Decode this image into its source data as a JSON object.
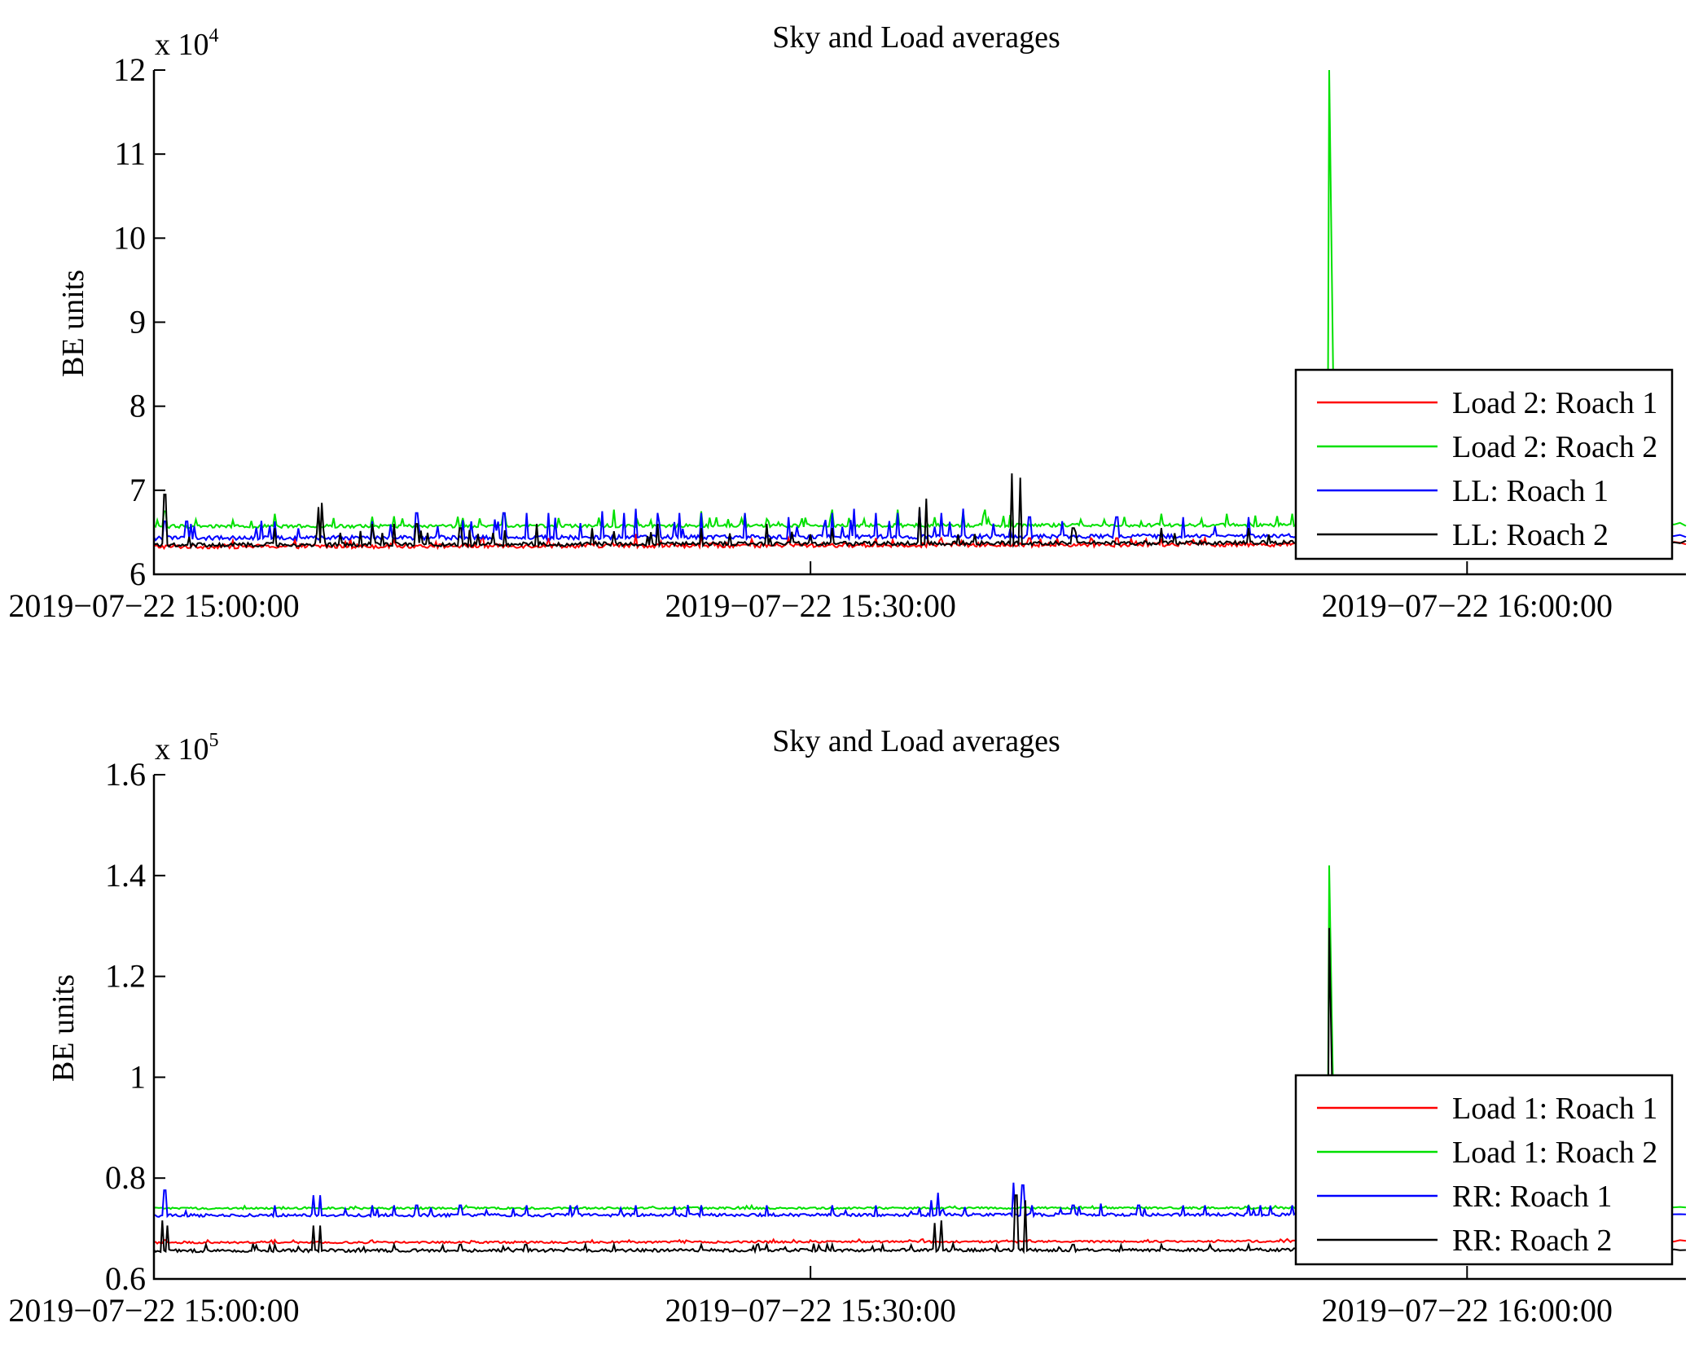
{
  "colors": {
    "red": "#ff0000",
    "green": "#00e000",
    "blue": "#0000ff",
    "black": "#000000"
  },
  "chart_data": [
    {
      "type": "line",
      "title": "Sky and Load averages",
      "ylabel": "BE units",
      "y_exponent_prefix": "x 10",
      "y_exponent_power": "4",
      "ylim": [
        6,
        12
      ],
      "yticks": [
        "6",
        "7",
        "8",
        "9",
        "10",
        "11",
        "12"
      ],
      "xlim_minutes": [
        0,
        70
      ],
      "xticks": [
        {
          "minute": 0,
          "label": "2019−07−22 15:00:00"
        },
        {
          "minute": 30,
          "label": "2019−07−22 15:30:00"
        },
        {
          "minute": 60,
          "label": "2019−07−22 16:00:00"
        }
      ],
      "series": [
        {
          "name": "Load 2: Roach 1",
          "color": "red",
          "baseline": 6.33,
          "noise": 0.025,
          "trend": 0.03,
          "spike_height": 0.08,
          "spikes": [
            [
              9,
              0.1
            ],
            [
              15,
              0.1
            ],
            [
              18,
              0.1
            ],
            [
              22,
              0.15
            ],
            [
              25,
              0.12
            ],
            [
              29,
              0.1
            ],
            [
              33,
              0.1
            ],
            [
              36,
              0.1
            ],
            [
              40,
              0.1
            ],
            [
              44,
              0.1
            ],
            [
              48,
              0.1
            ]
          ]
        },
        {
          "name": "Load 2: Roach 2",
          "color": "green",
          "baseline": 6.57,
          "noise": 0.02,
          "trend": 0.02,
          "spike_height": 0.12,
          "spikes": [
            [
              0.5,
              0.18
            ],
            [
              5.5,
              0.15
            ],
            [
              11,
              0.12
            ],
            [
              16,
              0.15
            ],
            [
              21,
              0.2
            ],
            [
              25,
              0.18
            ],
            [
              27,
              0.15
            ],
            [
              31,
              0.2
            ],
            [
              34,
              0.2
            ],
            [
              37,
              0.18
            ],
            [
              38,
              0.2
            ],
            [
              46,
              0.15
            ],
            [
              49,
              0.15
            ],
            [
              52,
              0.15
            ],
            [
              53.7,
              5.62
            ]
          ]
        },
        {
          "name": "LL: Roach 1",
          "color": "blue",
          "baseline": 6.43,
          "noise": 0.025,
          "trend": 0.03,
          "spike_height": 0.22,
          "spikes": [
            [
              0.5,
              0.2
            ],
            [
              1.5,
              0.2
            ],
            [
              5.5,
              0.2
            ],
            [
              10,
              0.2
            ],
            [
              12,
              0.3
            ],
            [
              14.5,
              0.2
            ],
            [
              16,
              0.3
            ],
            [
              17,
              0.3
            ],
            [
              18,
              0.3
            ],
            [
              20.5,
              0.32
            ],
            [
              21.5,
              0.3
            ],
            [
              22,
              0.35
            ],
            [
              23,
              0.3
            ],
            [
              24,
              0.3
            ],
            [
              25,
              0.3
            ],
            [
              27,
              0.3
            ],
            [
              29,
              0.25
            ],
            [
              31,
              0.3
            ],
            [
              32,
              0.35
            ],
            [
              33,
              0.3
            ],
            [
              34,
              0.3
            ],
            [
              35,
              0.35
            ],
            [
              36,
              0.3
            ],
            [
              37,
              0.35
            ],
            [
              40,
              0.25
            ],
            [
              44,
              0.25
            ],
            [
              47,
              0.25
            ],
            [
              50,
              0.25
            ],
            [
              54,
              0.25
            ],
            [
              59,
              0.25
            ]
          ]
        },
        {
          "name": "LL: Roach 2",
          "color": "black",
          "baseline": 6.35,
          "noise": 0.025,
          "trend": 0.03,
          "spike_height": 0.18,
          "spikes": [
            [
              0.5,
              0.6
            ],
            [
              5.5,
              0.2
            ],
            [
              7.5,
              0.45
            ],
            [
              7.7,
              0.5
            ],
            [
              10,
              0.25
            ],
            [
              11,
              0.25
            ],
            [
              12,
              0.25
            ],
            [
              14,
              0.2
            ],
            [
              17.5,
              0.25
            ],
            [
              20,
              0.2
            ],
            [
              23,
              0.25
            ],
            [
              25,
              0.2
            ],
            [
              28,
              0.25
            ],
            [
              31,
              0.2
            ],
            [
              35,
              0.45
            ],
            [
              35.3,
              0.55
            ],
            [
              39.2,
              0.85
            ],
            [
              39.6,
              0.8
            ],
            [
              42,
              0.2
            ],
            [
              46,
              0.2
            ],
            [
              50,
              0.2
            ],
            [
              53,
              0.2
            ]
          ]
        }
      ]
    },
    {
      "type": "line",
      "title": "Sky and Load averages",
      "ylabel": "BE units",
      "y_exponent_prefix": "x 10",
      "y_exponent_power": "5",
      "ylim": [
        0.6,
        1.6
      ],
      "yticks": [
        "0.6",
        "0.8",
        "1",
        "1.2",
        "1.4",
        "1.6"
      ],
      "xlim_minutes": [
        0,
        70
      ],
      "xticks": [
        {
          "minute": 0,
          "label": "2019−07−22 15:00:00"
        },
        {
          "minute": 30,
          "label": "2019−07−22 15:30:00"
        },
        {
          "minute": 60,
          "label": "2019−07−22 16:00:00"
        }
      ],
      "series": [
        {
          "name": "Load 1: Roach 1",
          "color": "red",
          "baseline": 0.672,
          "noise": 0.002,
          "trend": 0.003,
          "spike_height": 0.004,
          "spikes": [
            [
              0.5,
              0.005
            ],
            [
              10,
              0.005
            ],
            [
              20,
              0.005
            ],
            [
              30,
              0.005
            ],
            [
              40,
              0.005
            ],
            [
              50,
              0.005
            ]
          ]
        },
        {
          "name": "Load 1: Roach 2",
          "color": "green",
          "baseline": 0.74,
          "noise": 0.002,
          "trend": 0.001,
          "spike_height": 0.004,
          "spikes": [
            [
              53.7,
              0.68
            ]
          ]
        },
        {
          "name": "RR: Roach 1",
          "color": "blue",
          "baseline": 0.726,
          "noise": 0.003,
          "trend": 0.002,
          "spike_height": 0.02,
          "spikes": [
            [
              0.5,
              0.05
            ],
            [
              5.5,
              0.02
            ],
            [
              7.3,
              0.04
            ],
            [
              7.6,
              0.04
            ],
            [
              10,
              0.02
            ],
            [
              11,
              0.02
            ],
            [
              12,
              0.02
            ],
            [
              14,
              0.02
            ],
            [
              17,
              0.02
            ],
            [
              19,
              0.02
            ],
            [
              22,
              0.02
            ],
            [
              25,
              0.02
            ],
            [
              28,
              0.02
            ],
            [
              31,
              0.02
            ],
            [
              33,
              0.02
            ],
            [
              35.5,
              0.03
            ],
            [
              35.8,
              0.045
            ],
            [
              39.3,
              0.065
            ],
            [
              39.7,
              0.06
            ],
            [
              42,
              0.02
            ],
            [
              45,
              0.02
            ],
            [
              48,
              0.02
            ],
            [
              50,
              0.02
            ],
            [
              52,
              0.02
            ],
            [
              57,
              0.02
            ]
          ]
        },
        {
          "name": "RR: Roach 2",
          "color": "black",
          "baseline": 0.656,
          "noise": 0.003,
          "trend": 0.002,
          "spike_height": 0.012,
          "spikes": [
            [
              0.4,
              0.06
            ],
            [
              0.6,
              0.05
            ],
            [
              5.5,
              0.012
            ],
            [
              7.3,
              0.05
            ],
            [
              7.6,
              0.05
            ],
            [
              11,
              0.012
            ],
            [
              14,
              0.012
            ],
            [
              17,
              0.012
            ],
            [
              21,
              0.012
            ],
            [
              25,
              0.012
            ],
            [
              28,
              0.012
            ],
            [
              31,
              0.012
            ],
            [
              35.7,
              0.055
            ],
            [
              36,
              0.06
            ],
            [
              39.4,
              0.11
            ],
            [
              39.8,
              0.1
            ],
            [
              42,
              0.012
            ],
            [
              46,
              0.012
            ],
            [
              50,
              0.012
            ],
            [
              53.7,
              0.64
            ]
          ]
        }
      ]
    }
  ]
}
